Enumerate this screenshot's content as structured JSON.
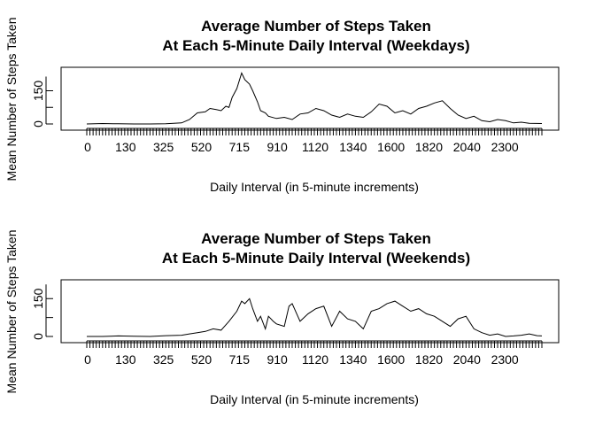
{
  "chart_data": [
    {
      "type": "line",
      "title": "Average Number of Steps Taken",
      "subtitle": "At Each 5-Minute Daily Interval (Weekdays)",
      "xlabel": "Daily Interval (in 5-minute increments)",
      "ylabel": "Mean Number of Steps Taken",
      "x_tick_labels": [
        "0",
        "130",
        "325",
        "520",
        "715",
        "910",
        "1120",
        "1340",
        "1600",
        "1820",
        "2040",
        "2300"
      ],
      "y_tick_labels": [
        "0",
        "150"
      ],
      "y_ticks": [
        0,
        150
      ],
      "xlim": [
        0,
        288
      ],
      "ylim": [
        0,
        240
      ],
      "grid": false,
      "series": [
        {
          "x": [
            0,
            10,
            20,
            30,
            40,
            50,
            60,
            65,
            70,
            75,
            78,
            82,
            85,
            88,
            90,
            92,
            95,
            98,
            100,
            103,
            105,
            108,
            110,
            113,
            115,
            120,
            125,
            130,
            135,
            140,
            145,
            150,
            155,
            160,
            165,
            170,
            175,
            180,
            185,
            190,
            195,
            200,
            205,
            210,
            215,
            220,
            225,
            230,
            235,
            240,
            245,
            250,
            255,
            260,
            265,
            270,
            275,
            280,
            288
          ],
          "y": [
            0,
            2,
            1,
            0,
            0,
            1,
            5,
            20,
            50,
            55,
            70,
            65,
            60,
            80,
            75,
            120,
            160,
            230,
            200,
            180,
            150,
            100,
            60,
            50,
            35,
            25,
            30,
            20,
            45,
            50,
            70,
            60,
            40,
            30,
            45,
            35,
            30,
            55,
            90,
            80,
            50,
            60,
            45,
            70,
            80,
            95,
            105,
            70,
            40,
            25,
            35,
            15,
            10,
            20,
            15,
            5,
            8,
            3,
            2
          ]
        }
      ]
    },
    {
      "type": "line",
      "title": "Average Number of Steps Taken",
      "subtitle": "At Each 5-Minute Daily Interval (Weekends)",
      "xlabel": "Daily Interval (in 5-minute increments)",
      "ylabel": "Mean Number of Steps Taken",
      "x_tick_labels": [
        "0",
        "130",
        "325",
        "520",
        "715",
        "910",
        "1120",
        "1340",
        "1600",
        "1820",
        "2040",
        "2300"
      ],
      "y_tick_labels": [
        "0",
        "150"
      ],
      "y_ticks": [
        0,
        150
      ],
      "xlim": [
        0,
        288
      ],
      "ylim": [
        0,
        200
      ],
      "grid": false,
      "series": [
        {
          "x": [
            0,
            10,
            20,
            30,
            40,
            50,
            60,
            65,
            70,
            75,
            80,
            85,
            90,
            95,
            98,
            100,
            103,
            105,
            108,
            110,
            113,
            115,
            118,
            120,
            125,
            128,
            130,
            135,
            140,
            145,
            150,
            155,
            160,
            165,
            170,
            175,
            180,
            185,
            190,
            195,
            200,
            205,
            210,
            215,
            220,
            225,
            230,
            235,
            240,
            245,
            250,
            255,
            260,
            265,
            270,
            275,
            280,
            285,
            288
          ],
          "y": [
            0,
            0,
            2,
            1,
            0,
            3,
            5,
            10,
            15,
            20,
            30,
            25,
            60,
            100,
            140,
            130,
            150,
            110,
            60,
            80,
            30,
            80,
            60,
            50,
            40,
            120,
            130,
            60,
            90,
            110,
            120,
            40,
            100,
            70,
            60,
            30,
            100,
            110,
            130,
            140,
            120,
            100,
            110,
            90,
            80,
            60,
            40,
            70,
            80,
            30,
            15,
            5,
            10,
            0,
            2,
            5,
            10,
            3,
            2
          ]
        }
      ]
    }
  ]
}
